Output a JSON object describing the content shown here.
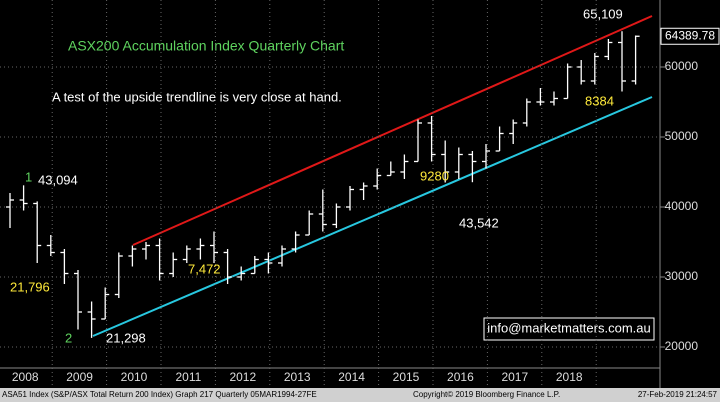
{
  "chart_data": {
    "type": "ohlc",
    "title": "ASX200 Accumulation Index Quarterly Chart",
    "subtitle": "A test of the upside trendline is very close at hand.",
    "categories": [
      null,
      null,
      "2008",
      null,
      null,
      null,
      "2009",
      null,
      null,
      null,
      "2010",
      null,
      null,
      null,
      "2011",
      null,
      null,
      null,
      "2012",
      null,
      null,
      null,
      "2013",
      null,
      null,
      null,
      "2014",
      null,
      null,
      null,
      "2015",
      null,
      null,
      null,
      "2016",
      null,
      null,
      null,
      "2017",
      null,
      null,
      null,
      "2018",
      null,
      null,
      null,
      null
    ],
    "open": [
      40000,
      41000,
      40500,
      34500,
      33500,
      30500,
      25000,
      24000,
      27500,
      33000,
      34000,
      34500,
      30500,
      32500,
      34000,
      34500,
      33500,
      30000,
      30500,
      32500,
      32000,
      34000,
      36000,
      39000,
      37500,
      40000,
      42500,
      43000,
      44500,
      45000,
      46500,
      52000,
      47500,
      45000,
      47500,
      46500,
      48000,
      50500,
      52000,
      55000,
      55000,
      55500,
      60000,
      58000,
      61500,
      63500,
      58000
    ],
    "high": [
      42000,
      43094,
      40800,
      36000,
      34000,
      31000,
      26500,
      28500,
      33500,
      34500,
      35000,
      35500,
      33500,
      34500,
      35500,
      36500,
      34000,
      31500,
      33000,
      33500,
      34500,
      36500,
      39500,
      42500,
      40500,
      43000,
      43500,
      45500,
      46500,
      47500,
      52500,
      53000,
      49500,
      48500,
      48000,
      49000,
      51500,
      52500,
      55500,
      57000,
      56500,
      60500,
      61000,
      62000,
      64000,
      65109,
      64500
    ],
    "low": [
      37000,
      39500,
      32000,
      33000,
      29000,
      22500,
      21298,
      24000,
      27000,
      31500,
      32500,
      29500,
      30000,
      32000,
      32500,
      32000,
      29000,
      29500,
      30500,
      30500,
      31500,
      33500,
      36000,
      36500,
      37000,
      39500,
      41000,
      42500,
      44500,
      44000,
      46500,
      46500,
      43500,
      44000,
      43542,
      45500,
      48000,
      49000,
      51500,
      54500,
      54500,
      55500,
      57500,
      57500,
      61000,
      56500,
      57500
    ],
    "close": [
      41000,
      40500,
      34500,
      33500,
      30500,
      25000,
      24000,
      27500,
      33000,
      34000,
      34500,
      30500,
      32500,
      34000,
      34500,
      33500,
      30000,
      30500,
      32500,
      32000,
      34000,
      36000,
      39000,
      37500,
      40000,
      42500,
      43000,
      44500,
      45000,
      46500,
      52000,
      47500,
      45000,
      47500,
      46500,
      48000,
      50500,
      52000,
      55000,
      55000,
      55500,
      60000,
      58000,
      61500,
      63500,
      58000,
      64389.78
    ],
    "last_price": 64389.78,
    "ylim": [
      17000,
      69570
    ],
    "yticks": [
      20000,
      30000,
      40000,
      50000,
      60000
    ],
    "grid": true,
    "annotations": [
      "43,094",
      "21,796",
      "21,298",
      "7,472",
      "9280",
      "43,542",
      "8384",
      "65,109",
      "1",
      "2"
    ],
    "contact": "info@marketmatters.com.au"
  },
  "footer": {
    "left": "ASA51 Index (S&P/ASX Total Return 200 Index) Graph 217  Quarterly 05MAR1994-27FE",
    "center": "Copyright© 2019 Bloomberg Finance L.P.",
    "right": "27-Feb-2019 21:24:57"
  }
}
